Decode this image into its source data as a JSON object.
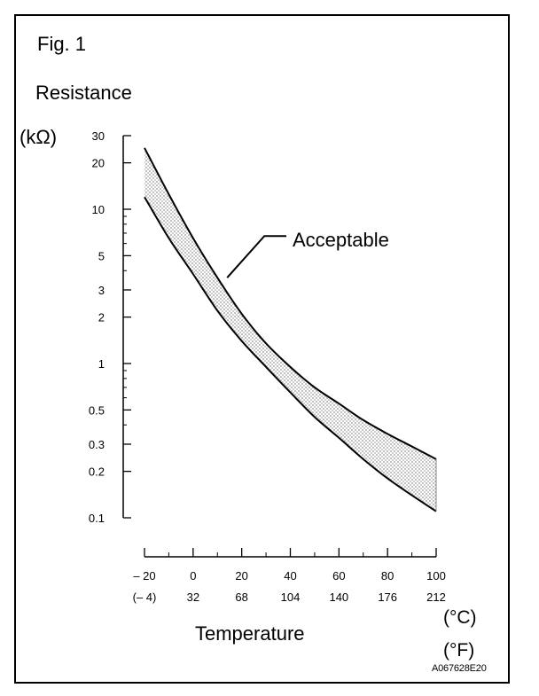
{
  "figure": {
    "title": "Fig. 1",
    "code": "A067628E20"
  },
  "chart_data": {
    "type": "area",
    "title": "Fig. 1",
    "ylabel": "Resistance",
    "yunit": "(kΩ)",
    "xlabel": "Temperature",
    "xunit_primary": "(°C)",
    "xunit_secondary": "(°F)",
    "yscale": "log",
    "ylim": [
      0.1,
      30
    ],
    "xlim": [
      -20,
      100
    ],
    "y_ticks": [
      {
        "value": 30,
        "label": "30"
      },
      {
        "value": 20,
        "label": "20"
      },
      {
        "value": 10,
        "label": "10"
      },
      {
        "value": 5,
        "label": "5"
      },
      {
        "value": 3,
        "label": "3"
      },
      {
        "value": 2,
        "label": "2"
      },
      {
        "value": 1,
        "label": "1"
      },
      {
        "value": 0.5,
        "label": "0.5"
      },
      {
        "value": 0.3,
        "label": "0.3"
      },
      {
        "value": 0.2,
        "label": "0.2"
      },
      {
        "value": 0.1,
        "label": "0.1"
      }
    ],
    "y_minor_ticks": [
      9,
      8,
      7,
      6,
      4,
      0.9,
      0.8,
      0.7,
      0.6,
      0.4
    ],
    "x_ticks": [
      {
        "celsius": -20,
        "label_c": "– 20",
        "label_f": "(– 4)"
      },
      {
        "celsius": 0,
        "label_c": "0",
        "label_f": "32"
      },
      {
        "celsius": 20,
        "label_c": "20",
        "label_f": "68"
      },
      {
        "celsius": 40,
        "label_c": "40",
        "label_f": "104"
      },
      {
        "celsius": 60,
        "label_c": "60",
        "label_f": "140"
      },
      {
        "celsius": 80,
        "label_c": "80",
        "label_f": "176"
      },
      {
        "celsius": 100,
        "label_c": "100",
        "label_f": "212"
      }
    ],
    "x_minor_ticks": [
      -10,
      10,
      30,
      50,
      70,
      90
    ],
    "series": [
      {
        "role": "upper",
        "x": [
          -20,
          -10,
          0,
          10,
          20,
          30,
          40,
          50,
          60,
          70,
          80,
          90,
          100
        ],
        "y": [
          25,
          12.5,
          6.5,
          3.6,
          2.1,
          1.35,
          0.95,
          0.7,
          0.55,
          0.43,
          0.35,
          0.29,
          0.24
        ]
      },
      {
        "role": "lower",
        "x": [
          -20,
          -10,
          0,
          10,
          20,
          30,
          40,
          50,
          60,
          70,
          80,
          90,
          100
        ],
        "y": [
          12,
          6.5,
          3.8,
          2.2,
          1.4,
          0.95,
          0.65,
          0.45,
          0.33,
          0.24,
          0.18,
          0.14,
          0.11
        ]
      }
    ],
    "band_label": "Acceptable",
    "band_annotation": {
      "x": 14,
      "y": 3.6
    }
  }
}
